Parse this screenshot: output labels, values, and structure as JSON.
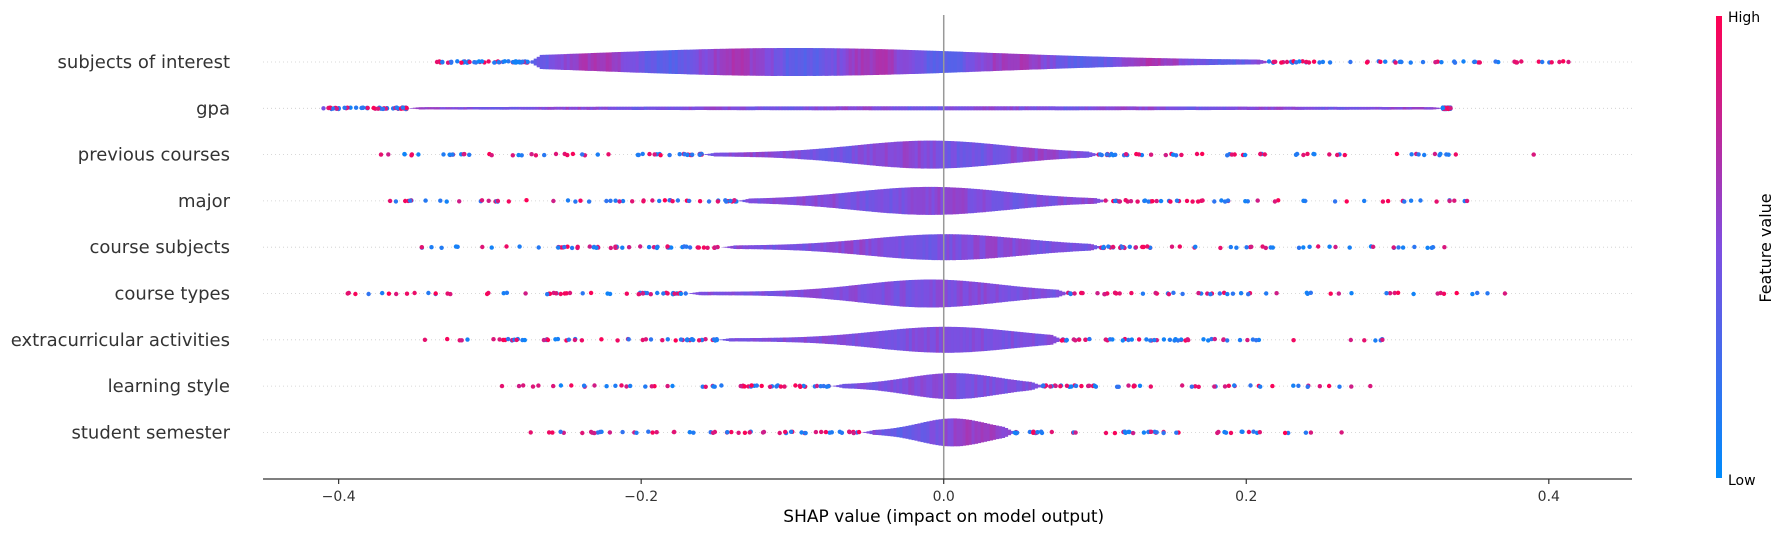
{
  "chart_data": {
    "type": "violin",
    "xlabel": "SHAP value (impact on model output)",
    "xlim": [
      -0.45,
      0.455
    ],
    "xticks": [
      {
        "value": -0.4,
        "label": "−0.4"
      },
      {
        "value": -0.2,
        "label": "−0.2"
      },
      {
        "value": 0.0,
        "label": "0.0"
      },
      {
        "value": 0.2,
        "label": "0.2"
      },
      {
        "value": 0.4,
        "label": "0.4"
      }
    ],
    "colorbar": {
      "title": "Feature value",
      "high_label": "High",
      "low_label": "Low",
      "high_color": "#ff0052",
      "mid_color": "#7f4ee0",
      "low_color": "#008bfb"
    },
    "features": [
      {
        "name": "subjects of interest",
        "range": [
          -0.335,
          0.413
        ],
        "body": [
          -0.275,
          0.215
        ],
        "peak": -0.1,
        "spread": 0.13,
        "maxw": 14,
        "bias": 0.7
      },
      {
        "name": "gpa",
        "range": [
          -0.41,
          0.335
        ],
        "body": [
          -0.355,
          0.33
        ],
        "peak": 0.0,
        "spread": 0.3,
        "maxw": 2,
        "bias": 0.3
      },
      {
        "name": "previous courses",
        "range": [
          -0.372,
          0.39
        ],
        "body": [
          -0.16,
          0.102
        ],
        "peak": -0.01,
        "spread": 0.05,
        "maxw": 14,
        "bias": -0.3
      },
      {
        "name": "major",
        "range": [
          -0.366,
          0.346
        ],
        "body": [
          -0.137,
          0.107
        ],
        "peak": -0.01,
        "spread": 0.05,
        "maxw": 14,
        "bias": 0.2
      },
      {
        "name": "course subjects",
        "range": [
          -0.345,
          0.331
        ],
        "body": [
          -0.147,
          0.104
        ],
        "peak": 0.0,
        "spread": 0.05,
        "maxw": 13,
        "bias": -0.2
      },
      {
        "name": "course types",
        "range": [
          -0.394,
          0.371
        ],
        "body": [
          -0.17,
          0.082
        ],
        "peak": -0.01,
        "spread": 0.045,
        "maxw": 14,
        "bias": -0.1
      },
      {
        "name": "extracurricular activities",
        "range": [
          -0.343,
          0.29
        ],
        "body": [
          -0.15,
          0.078
        ],
        "peak": 0.0,
        "spread": 0.045,
        "maxw": 13,
        "bias": -0.1
      },
      {
        "name": "learning style",
        "range": [
          -0.292,
          0.282
        ],
        "body": [
          -0.075,
          0.065
        ],
        "peak": 0.005,
        "spread": 0.03,
        "maxw": 13,
        "bias": -0.1
      },
      {
        "name": "student semester",
        "range": [
          -0.273,
          0.263
        ],
        "body": [
          -0.055,
          0.047
        ],
        "peak": 0.005,
        "spread": 0.022,
        "maxw": 14,
        "bias": 0.5
      }
    ]
  }
}
